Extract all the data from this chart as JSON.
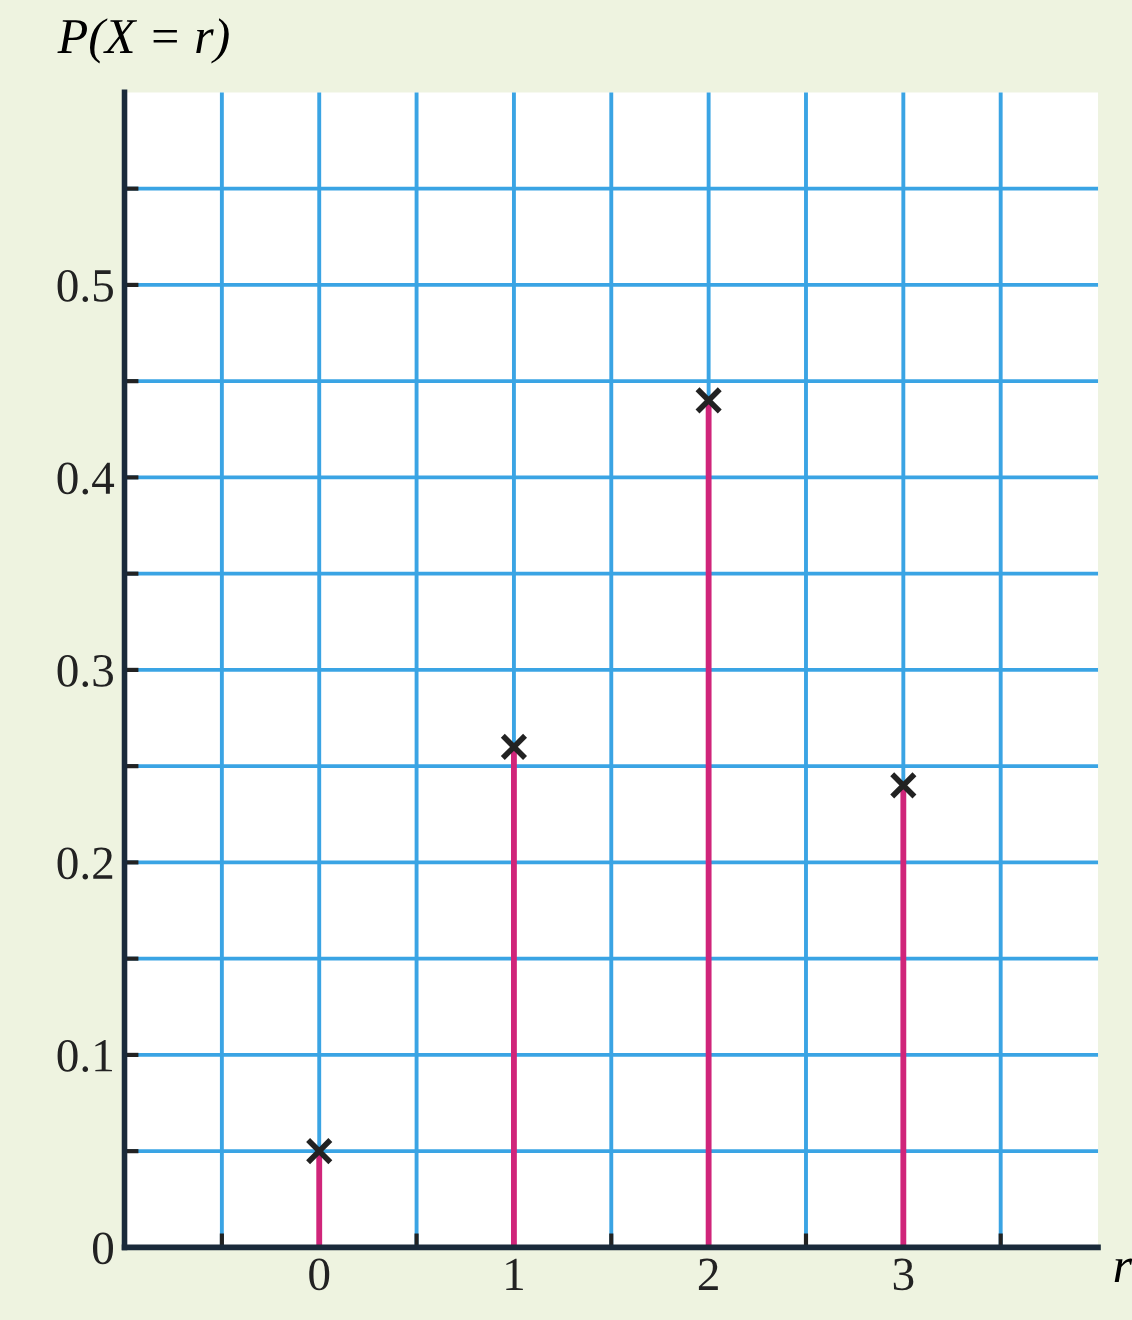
{
  "chart_data": {
    "type": "bar",
    "xlabel": "r",
    "ylabel": "P(X = r)",
    "x": [
      0,
      1,
      2,
      3
    ],
    "series": [
      {
        "color": "#d0257a",
        "values": [
          0.05,
          0.26,
          0.44,
          0.24
        ]
      },
      {
        "type": "scatter",
        "color": "#222222",
        "marker": "cross",
        "values": [
          0.05,
          0.26,
          0.44,
          0.24
        ]
      }
    ],
    "xlim": [
      -1,
      4
    ],
    "ylim": [
      0,
      0.6
    ],
    "xticks": [
      {
        "value": -0.5,
        "label": null
      },
      0,
      {
        "value": 0.5,
        "label": null
      },
      1,
      {
        "value": 1.5,
        "label": null
      },
      2,
      {
        "value": 2.5,
        "label": null
      },
      3,
      {
        "value": 3.5,
        "label": null
      }
    ],
    "yticks": [
      0,
      {
        "value": 0.05,
        "label": null
      },
      0.1,
      {
        "value": 0.15,
        "label": null
      },
      0.2,
      {
        "value": 0.25,
        "label": null
      },
      0.3,
      {
        "value": 0.35,
        "label": null
      },
      0.4,
      {
        "value": 0.45,
        "label": null
      },
      0.5,
      {
        "value": 0.55,
        "label": null
      }
    ],
    "grid": true
  }
}
